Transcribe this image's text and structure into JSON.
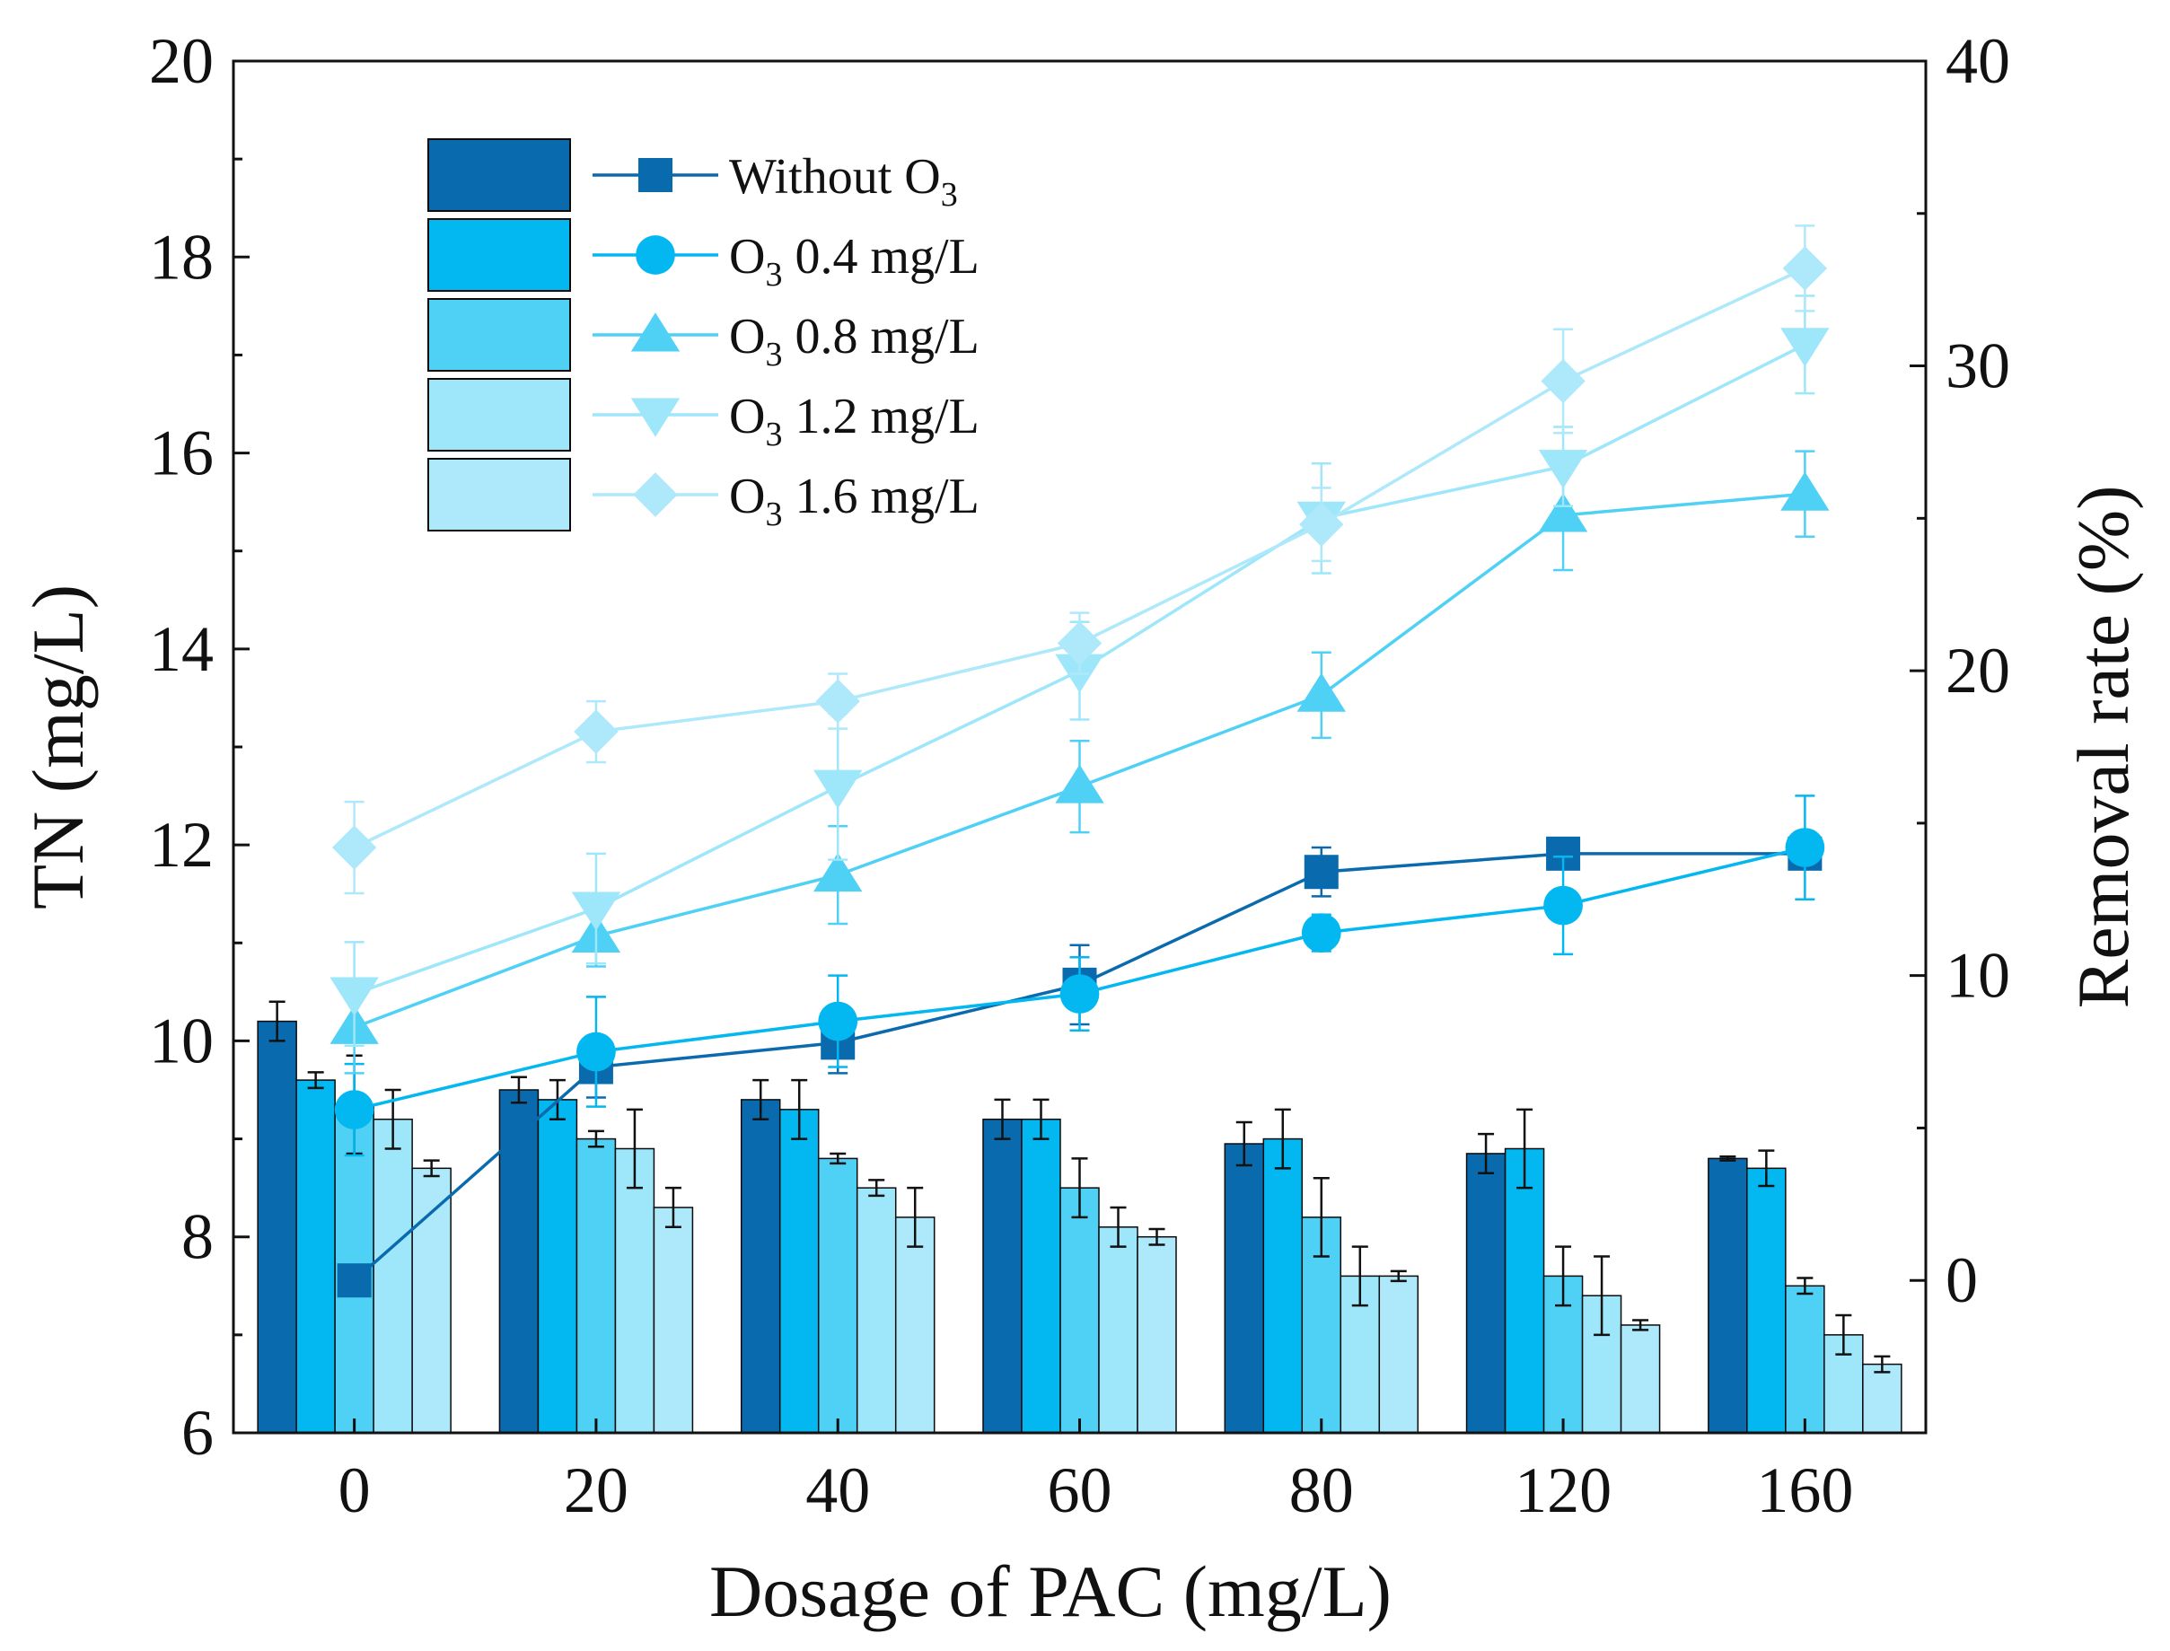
{
  "chart_data": {
    "type": "bar+line",
    "categories": [
      "0",
      "20",
      "40",
      "60",
      "80",
      "120",
      "160"
    ],
    "xlabel": "Dosage of PAC (mg/L)",
    "ylabel_left": "TN (mg/L)",
    "ylabel_right": "Removal rate (%)",
    "ylim_left": [
      6,
      20
    ],
    "ylim_right": [
      -5,
      40
    ],
    "yticks_left": [
      6,
      8,
      10,
      12,
      14,
      16,
      18,
      20
    ],
    "yticks_right": [
      0,
      10,
      20,
      30,
      40
    ],
    "bars": [
      {
        "name": "Without O3",
        "color": "#0A6AAE",
        "values": [
          10.2,
          9.5,
          9.4,
          9.2,
          8.95,
          8.85,
          8.8
        ],
        "errors": [
          0.2,
          0.13,
          0.2,
          0.2,
          0.22,
          0.2,
          0.02
        ]
      },
      {
        "name": "O3 0.4 mg/L",
        "color": "#03B7F0",
        "values": [
          9.6,
          9.4,
          9.3,
          9.2,
          9.0,
          8.9,
          8.7
        ],
        "errors": [
          0.08,
          0.2,
          0.3,
          0.2,
          0.3,
          0.4,
          0.18
        ]
      },
      {
        "name": "O3 0.8 mg/L",
        "color": "#4FD0F5",
        "values": [
          9.35,
          9.0,
          8.8,
          8.5,
          8.2,
          7.6,
          7.5
        ],
        "errors": [
          0.5,
          0.08,
          0.05,
          0.3,
          0.4,
          0.3,
          0.08
        ]
      },
      {
        "name": "O3 1.2 mg/L",
        "color": "#9EE6FA",
        "values": [
          9.2,
          8.9,
          8.5,
          8.1,
          7.6,
          7.4,
          7.0
        ],
        "errors": [
          0.3,
          0.4,
          0.08,
          0.2,
          0.3,
          0.4,
          0.2
        ]
      },
      {
        "name": "O3 1.6 mg/L",
        "color": "#AEE8FB",
        "values": [
          8.7,
          8.3,
          8.2,
          8.0,
          7.6,
          7.1,
          6.7
        ],
        "errors": [
          0.08,
          0.2,
          0.3,
          0.08,
          0.05,
          0.05,
          0.08
        ]
      }
    ],
    "lines": [
      {
        "name": "Without O3",
        "color": "#0A6AAE",
        "marker": "square",
        "values": [
          0,
          7.0,
          7.8,
          9.7,
          13.4,
          14.0,
          14.0
        ],
        "errors": [
          0.3,
          1.0,
          1.0,
          1.3,
          0.8,
          0.5,
          0.3
        ]
      },
      {
        "name": "O3 0.4 mg/L",
        "color": "#03B7F0",
        "marker": "circle",
        "values": [
          5.6,
          7.5,
          8.5,
          9.4,
          11.4,
          12.3,
          14.2
        ],
        "errors": [
          1.5,
          1.8,
          1.5,
          1.2,
          0.6,
          1.6,
          1.7
        ]
      },
      {
        "name": "O3 0.8 mg/L",
        "color": "#4FD0F5",
        "marker": "triangle-up",
        "values": [
          8.3,
          11.3,
          13.3,
          16.2,
          19.2,
          25.1,
          25.8
        ],
        "errors": [
          1.5,
          1.0,
          1.6,
          1.5,
          1.4,
          1.8,
          1.4
        ]
      },
      {
        "name": "O3 1.2 mg/L",
        "color": "#9EE6FA",
        "marker": "triangle-down",
        "values": [
          9.4,
          12.2,
          16.2,
          20.0,
          25.0,
          26.7,
          30.7
        ],
        "errors": [
          1.7,
          1.8,
          2.4,
          1.6,
          1.8,
          1.3,
          1.6
        ]
      },
      {
        "name": "O3 1.6 mg/L",
        "color": "#AEE8FB",
        "marker": "diamond",
        "values": [
          14.2,
          18.0,
          19.0,
          20.9,
          24.8,
          29.5,
          33.2
        ],
        "errors": [
          1.5,
          1.0,
          0.9,
          1.0,
          1.2,
          1.7,
          1.4
        ]
      }
    ],
    "legend": {
      "placement": "top-left",
      "entries": [
        {
          "prefix": "Without O",
          "sub": "3",
          "suffix": ""
        },
        {
          "prefix": "O",
          "sub": "3",
          "suffix": " 0.4 mg/L"
        },
        {
          "prefix": "O",
          "sub": "3",
          "suffix": " 0.8 mg/L"
        },
        {
          "prefix": "O",
          "sub": "3",
          "suffix": " 1.2 mg/L"
        },
        {
          "prefix": "O",
          "sub": "3",
          "suffix": " 1.6 mg/L"
        }
      ]
    }
  }
}
